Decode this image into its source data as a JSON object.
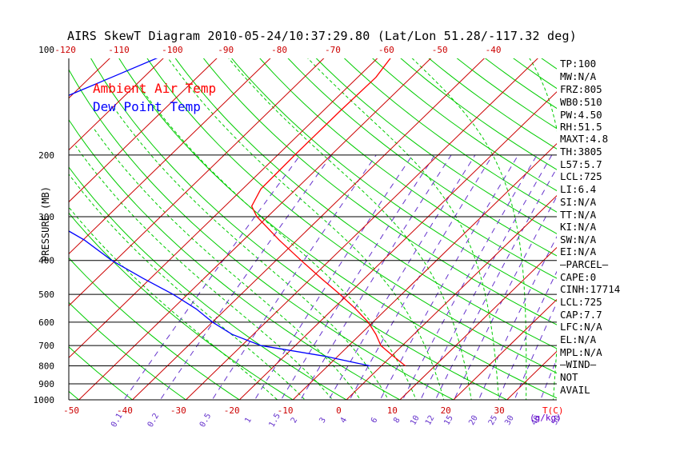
{
  "title": "AIRS SkewT Diagram 2010-05-24/10:37:29.80 (Lat/Lon 51.28/-117.32 deg)",
  "legend": {
    "ambient": "Ambient Air Temp",
    "dew": "Dew Point Temp"
  },
  "ylabel": "PRESSURE (MB)",
  "units": {
    "temperature": "T(C)",
    "mixing_ratio": "(g/kg)"
  },
  "indices": [
    "TP:100",
    "MW:N/A",
    "FRZ:805",
    "WB0:510",
    "PW:4.50",
    "RH:51.5",
    "MAXT:4.8",
    "TH:3805",
    "L57:5.7",
    "LCL:725",
    "LI:6.4",
    "SI:N/A",
    "TT:N/A",
    "KI:N/A",
    "SW:N/A",
    "EI:N/A",
    "—PARCEL—",
    "CAPE:0",
    "CINH:17714",
    "LCL:725",
    "CAP:7.7",
    "LFC:N/A",
    "EL:N/A",
    "MPL:N/A",
    "—WIND—",
    "NOT",
    "AVAIL"
  ],
  "colors": {
    "ambient": "#ff0000",
    "dew": "#0000ff",
    "dry_adiabat": "#00cc00",
    "moist_adiabat": "#00cc00",
    "mixing_ratio": "#6633cc",
    "isotherm": "#cc0000",
    "isobar": "#000000"
  },
  "chart_data": {
    "type": "line",
    "title": "AIRS SkewT Diagram 2010-05-24/10:37:29.80 (Lat/Lon 51.28/-117.32 deg)",
    "xlabel": "T(C)",
    "ylabel": "PRESSURE (MB)",
    "y_scale": "log",
    "ylim": [
      1050,
      100
    ],
    "pressure_ticks": [
      100,
      200,
      300,
      400,
      500,
      600,
      700,
      800,
      900,
      1000
    ],
    "top_temperature_ticks": [
      -120,
      -110,
      -100,
      -90,
      -80,
      -70,
      -60,
      -50,
      -40
    ],
    "bottom_temperature_ticks": [
      -50,
      -40,
      -30,
      -20,
      -10,
      0,
      10,
      20,
      30
    ],
    "mixing_ratio_ticks": [
      "0.1",
      "0.2",
      "0.5",
      "1",
      "1.5",
      "2",
      "3",
      "4",
      "6",
      "8",
      "10",
      "12",
      "15",
      "20",
      "25",
      "30",
      "40",
      "50"
    ],
    "grid": true,
    "legend_position": "top-left",
    "series": [
      {
        "name": "Ambient Air Temp",
        "pressure": [
          100,
          120,
          150,
          180,
          200,
          250,
          280,
          300,
          350,
          400,
          450,
          500,
          550,
          600,
          650,
          700,
          750,
          800
        ],
        "temp": [
          -58.0,
          -56.6,
          -56.8,
          -56.8,
          -56.8,
          -56.6,
          -55.0,
          -52.0,
          -43.3,
          -35.3,
          -28.1,
          -21.5,
          -15.8,
          -10.9,
          -7.1,
          -4.0,
          0.3,
          4.5
        ]
      },
      {
        "name": "Dew Point Temp",
        "pressure": [
          100,
          120,
          150,
          180,
          200,
          250,
          280,
          300,
          350,
          400,
          450,
          500,
          550,
          600,
          650,
          700,
          750,
          800
        ],
        "temp": [
          -99.1,
          -106.0,
          -114.5,
          -118.0,
          -117.3,
          -103.3,
          -96.5,
          -91.8,
          -79.7,
          -70.7,
          -61.4,
          -52.7,
          -45.6,
          -40.0,
          -34.0,
          -26.4,
          -12.6,
          -2.1
        ]
      }
    ]
  }
}
